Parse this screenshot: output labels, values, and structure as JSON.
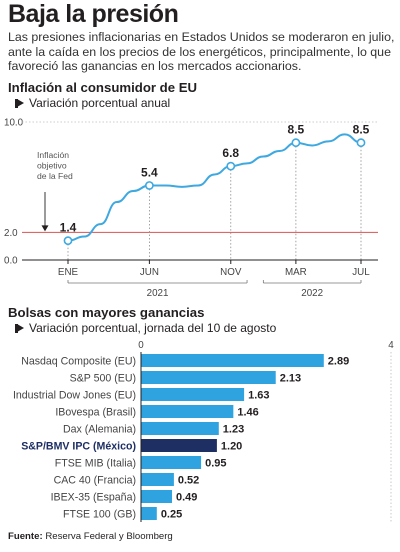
{
  "headline": "Baja la presión",
  "deck": "Las presiones inflacionarias en Estados Unidos se moderaron en julio, ante la caída en los precios de los energéticos, principalmente, lo que favoreció las ganancias en los mercados accionarios.",
  "chart_data": [
    {
      "type": "line",
      "title": "Inflación al consumidor de EU",
      "subtitle": "Variación porcentual anual",
      "x": [
        "ENE 2021",
        "FEB 2021",
        "MAR 2021",
        "ABR 2021",
        "MAY 2021",
        "JUN 2021",
        "JUL 2021",
        "AGO 2021",
        "SEP 2021",
        "OCT 2021",
        "NOV 2021",
        "DIC 2021",
        "ENE 2022",
        "FEB 2022",
        "MAR 2022",
        "ABR 2022",
        "MAY 2022",
        "JUN 2022",
        "JUL 2022"
      ],
      "values": [
        1.4,
        1.7,
        2.6,
        4.2,
        5.0,
        5.4,
        5.4,
        5.3,
        5.4,
        6.2,
        6.8,
        7.0,
        7.5,
        7.9,
        8.5,
        8.3,
        8.6,
        9.1,
        8.5
      ],
      "labeled_points": [
        {
          "x": "ENE 2021",
          "label": "1.4"
        },
        {
          "x": "JUN 2021",
          "label": "5.4"
        },
        {
          "x": "NOV 2021",
          "label": "6.8"
        },
        {
          "x": "MAR 2022",
          "label": "8.5"
        },
        {
          "x": "JUL 2022",
          "label": "8.5"
        }
      ],
      "tick_labels": [
        "ENE",
        "JUN",
        "NOV",
        "MAR",
        "JUL"
      ],
      "year_labels": [
        "2021",
        "2022"
      ],
      "y_tick_labels": [
        "10.0",
        "2.0",
        "0.0"
      ],
      "ylim": [
        0,
        10
      ],
      "reference_line": {
        "value": 2.0,
        "label_lines": [
          "Inflación",
          "objetivo",
          "de la Fed"
        ],
        "color": "#d9534f"
      },
      "line_color": "#3ea8e0"
    },
    {
      "type": "bar",
      "orientation": "horizontal",
      "title": "Bolsas con mayores ganancias",
      "subtitle": "Variación porcentual, jornada del 10 de agosto",
      "categories": [
        "Nasdaq Composite (EU)",
        "S&P 500 (EU)",
        "Industrial Dow Jones (EU)",
        "IBovespa (Brasil)",
        "Dax (Alemania)",
        "S&P/BMV IPC (México)",
        "FTSE MIB (Italia)",
        "CAC 40 (Francia)",
        "IBEX-35 (España)",
        "FTSE 100 (GB)"
      ],
      "values": [
        2.89,
        2.13,
        1.63,
        1.46,
        1.23,
        1.2,
        0.95,
        0.52,
        0.49,
        0.25
      ],
      "value_labels": [
        "2.89",
        "2.13",
        "1.63",
        "1.46",
        "1.23",
        "1.20",
        "0.95",
        "0.52",
        "0.49",
        "0.25"
      ],
      "highlight": "S&P/BMV IPC (México)",
      "xlim": [
        0,
        4
      ],
      "x_tick_labels": [
        "0",
        "4"
      ],
      "colors": {
        "bar": "#2fa3e0",
        "highlight": "#1e2f63"
      }
    }
  ],
  "source": {
    "label": "Fuente:",
    "text": "Reserva Federal y Bloomberg"
  }
}
